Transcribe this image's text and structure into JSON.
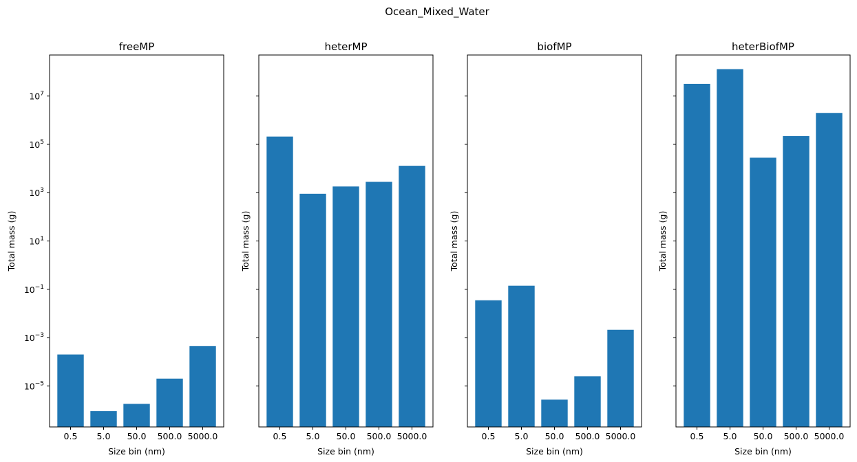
{
  "figure": {
    "suptitle": "Ocean_Mixed_Water"
  },
  "chart_data": [
    {
      "type": "bar",
      "title": "freeMP",
      "xlabel": "Size bin (nm)",
      "ylabel": "Total mass (g)",
      "yscale": "log",
      "ylim": [
        2e-07,
        500000000.0
      ],
      "categories": [
        "0.5",
        "5.0",
        "50.0",
        "500.0",
        "5000.0"
      ],
      "values": [
        0.0002,
        9e-07,
        1.8e-06,
        2e-05,
        0.00045
      ],
      "color": "#1f77b4",
      "show_ytick_labels": true
    },
    {
      "type": "bar",
      "title": "heterMP",
      "xlabel": "Size bin (nm)",
      "ylabel": "Total mass (g)",
      "yscale": "log",
      "ylim": [
        2e-07,
        500000000.0
      ],
      "categories": [
        "0.5",
        "5.0",
        "50.0",
        "500.0",
        "5000.0"
      ],
      "values": [
        210000,
        900,
        1800,
        2800,
        13000
      ],
      "color": "#1f77b4",
      "show_ytick_labels": false
    },
    {
      "type": "bar",
      "title": "biofMP",
      "xlabel": "Size bin (nm)",
      "ylabel": "Total mass (g)",
      "yscale": "log",
      "ylim": [
        2e-07,
        500000000.0
      ],
      "categories": [
        "0.5",
        "5.0",
        "50.0",
        "500.0",
        "5000.0"
      ],
      "values": [
        0.035,
        0.14,
        2.7e-06,
        2.5e-05,
        0.0021
      ],
      "color": "#1f77b4",
      "show_ytick_labels": false
    },
    {
      "type": "bar",
      "title": "heterBiofMP",
      "xlabel": "Size bin (nm)",
      "ylabel": "Total mass (g)",
      "yscale": "log",
      "ylim": [
        2e-07,
        500000000.0
      ],
      "categories": [
        "0.5",
        "5.0",
        "50.0",
        "500.0",
        "5000.0"
      ],
      "values": [
        32000000,
        130000000,
        28000,
        220000,
        2000000
      ],
      "color": "#1f77b4",
      "show_ytick_labels": false
    }
  ],
  "yticks": [
    {
      "exp": -5,
      "base": "10",
      "sup": "−5"
    },
    {
      "exp": -3,
      "base": "10",
      "sup": "−3"
    },
    {
      "exp": -1,
      "base": "10",
      "sup": "−1"
    },
    {
      "exp": 1,
      "base": "10",
      "sup": "1"
    },
    {
      "exp": 3,
      "base": "10",
      "sup": "3"
    },
    {
      "exp": 5,
      "base": "10",
      "sup": "5"
    },
    {
      "exp": 7,
      "base": "10",
      "sup": "7"
    }
  ]
}
